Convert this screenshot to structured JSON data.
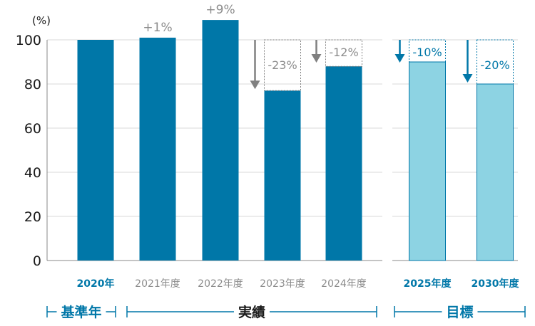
{
  "chart_data": {
    "type": "bar",
    "y_unit": "(%)",
    "ylim": [
      0,
      100
    ],
    "yticks": [
      "0",
      "20",
      "40",
      "60",
      "80",
      "100"
    ],
    "grid": true,
    "categories": [
      "2020年",
      "2021年度",
      "2022年度",
      "2023年度",
      "2024年度",
      "2025年度",
      "2030年度"
    ],
    "values": [
      100,
      101,
      109,
      77,
      88,
      90,
      80
    ],
    "changes": [
      "",
      "+1%",
      "+9%",
      "-23%",
      "-12%",
      "-10%",
      "-20%"
    ],
    "kinds": [
      "base",
      "actual",
      "actual",
      "actual",
      "actual",
      "target",
      "target"
    ],
    "groups": [
      {
        "label": "基準年",
        "kind": "base"
      },
      {
        "label": "実績",
        "kind": "actual"
      },
      {
        "label": "目標",
        "kind": "target"
      }
    ],
    "colors": {
      "bar": "#0077a8",
      "target_bar": "#8dd3e3",
      "target_text": "#0077a8",
      "actual_text": "#8c8c8c",
      "arrow_gray": "#808080",
      "group_line": "#0077a8",
      "grid": "#d9d9d9",
      "axis_text": "#1a1a1a"
    }
  }
}
